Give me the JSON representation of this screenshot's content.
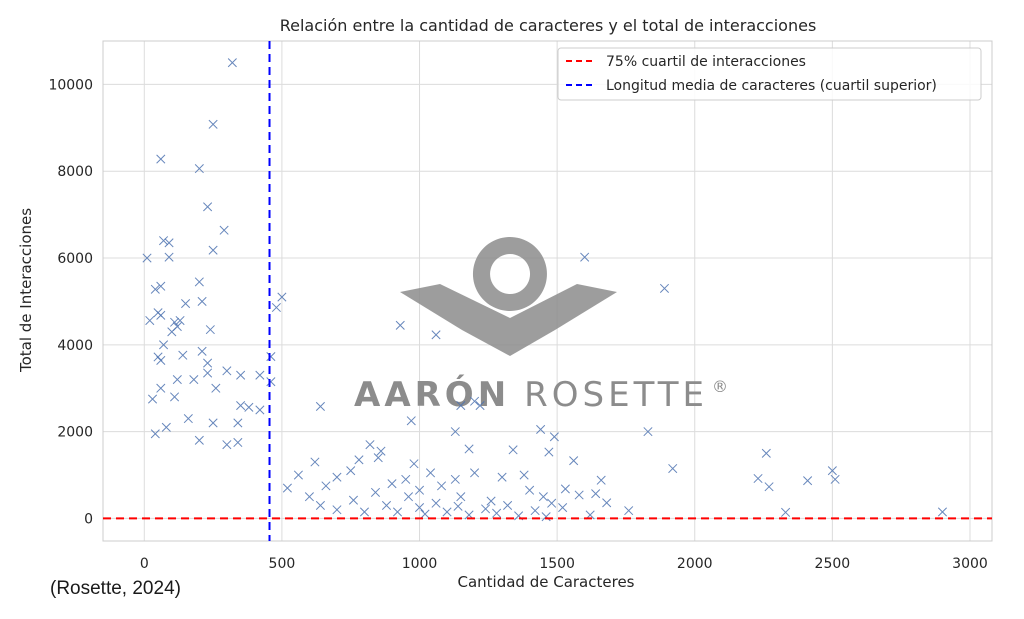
{
  "chart_data": {
    "type": "scatter",
    "title": "Relación entre la cantidad de caracteres y el total de interacciones",
    "xlabel": "Cantidad de Caracteres",
    "ylabel": "Total de Interacciones",
    "xlim": [
      -150,
      3080
    ],
    "ylim": [
      -520,
      11000
    ],
    "xticks": [
      "0",
      "500",
      "1000",
      "1500",
      "2000",
      "2500",
      "3000"
    ],
    "yticks": [
      "0",
      "2000",
      "4000",
      "6000",
      "8000",
      "10000"
    ],
    "grid": true,
    "legend_position": "top-right",
    "series": [
      {
        "marker": "x",
        "color": "#4c72b0",
        "points": [
          [
            320,
            10500
          ],
          [
            250,
            9080
          ],
          [
            60,
            8280
          ],
          [
            200,
            8060
          ],
          [
            230,
            7180
          ],
          [
            290,
            6640
          ],
          [
            70,
            6400
          ],
          [
            90,
            6350
          ],
          [
            250,
            6180
          ],
          [
            10,
            6000
          ],
          [
            90,
            6020
          ],
          [
            1600,
            6020
          ],
          [
            200,
            5450
          ],
          [
            40,
            5280
          ],
          [
            60,
            5350
          ],
          [
            500,
            5100
          ],
          [
            1890,
            5300
          ],
          [
            480,
            4860
          ],
          [
            150,
            4950
          ],
          [
            210,
            5000
          ],
          [
            50,
            4740
          ],
          [
            60,
            4680
          ],
          [
            20,
            4560
          ],
          [
            110,
            4520
          ],
          [
            120,
            4420
          ],
          [
            130,
            4560
          ],
          [
            100,
            4300
          ],
          [
            930,
            4450
          ],
          [
            1060,
            4230
          ],
          [
            240,
            4350
          ],
          [
            70,
            4000
          ],
          [
            210,
            3850
          ],
          [
            140,
            3760
          ],
          [
            50,
            3720
          ],
          [
            60,
            3640
          ],
          [
            230,
            3580
          ],
          [
            460,
            3730
          ],
          [
            230,
            3350
          ],
          [
            300,
            3400
          ],
          [
            350,
            3300
          ],
          [
            420,
            3300
          ],
          [
            120,
            3200
          ],
          [
            180,
            3200
          ],
          [
            460,
            3150
          ],
          [
            260,
            3000
          ],
          [
            60,
            3000
          ],
          [
            110,
            2800
          ],
          [
            30,
            2750
          ],
          [
            350,
            2600
          ],
          [
            380,
            2560
          ],
          [
            420,
            2500
          ],
          [
            640,
            2580
          ],
          [
            1150,
            2600
          ],
          [
            1200,
            2700
          ],
          [
            1220,
            2600
          ],
          [
            970,
            2250
          ],
          [
            160,
            2300
          ],
          [
            250,
            2200
          ],
          [
            80,
            2100
          ],
          [
            340,
            2200
          ],
          [
            1130,
            2000
          ],
          [
            1440,
            2050
          ],
          [
            1490,
            1880
          ],
          [
            1830,
            2000
          ],
          [
            40,
            1950
          ],
          [
            200,
            1800
          ],
          [
            340,
            1750
          ],
          [
            300,
            1700
          ],
          [
            1180,
            1600
          ],
          [
            820,
            1700
          ],
          [
            860,
            1550
          ],
          [
            780,
            1350
          ],
          [
            1340,
            1580
          ],
          [
            1470,
            1530
          ],
          [
            1560,
            1330
          ],
          [
            2260,
            1500
          ],
          [
            1920,
            1150
          ],
          [
            2500,
            1100
          ],
          [
            2510,
            900
          ],
          [
            2230,
            920
          ],
          [
            2410,
            870
          ],
          [
            2270,
            730
          ],
          [
            1660,
            880
          ],
          [
            1640,
            570
          ],
          [
            1680,
            360
          ],
          [
            1580,
            540
          ],
          [
            1760,
            180
          ],
          [
            1620,
            80
          ],
          [
            2330,
            140
          ],
          [
            2900,
            150
          ],
          [
            980,
            1260
          ],
          [
            1040,
            1050
          ],
          [
            1130,
            900
          ],
          [
            1200,
            1050
          ],
          [
            1300,
            950
          ],
          [
            1380,
            1000
          ],
          [
            1400,
            650
          ],
          [
            1450,
            500
          ],
          [
            1480,
            350
          ],
          [
            1520,
            250
          ],
          [
            1530,
            680
          ],
          [
            900,
            800
          ],
          [
            850,
            1400
          ],
          [
            750,
            1100
          ],
          [
            700,
            950
          ],
          [
            660,
            750
          ],
          [
            620,
            1300
          ],
          [
            560,
            1000
          ],
          [
            520,
            700
          ],
          [
            600,
            500
          ],
          [
            640,
            300
          ],
          [
            700,
            200
          ],
          [
            760,
            420
          ],
          [
            800,
            150
          ],
          [
            840,
            600
          ],
          [
            880,
            300
          ],
          [
            920,
            150
          ],
          [
            960,
            500
          ],
          [
            1000,
            250
          ],
          [
            1020,
            100
          ],
          [
            1060,
            350
          ],
          [
            1100,
            150
          ],
          [
            1140,
            280
          ],
          [
            1180,
            80
          ],
          [
            1240,
            220
          ],
          [
            1280,
            120
          ],
          [
            1320,
            300
          ],
          [
            1360,
            60
          ],
          [
            1420,
            180
          ],
          [
            1460,
            40
          ],
          [
            1000,
            650
          ],
          [
            950,
            900
          ],
          [
            1080,
            750
          ],
          [
            1150,
            500
          ],
          [
            1260,
            400
          ]
        ]
      }
    ],
    "reference_lines": [
      {
        "orientation": "horizontal",
        "value": 0,
        "color": "#ff0000",
        "label": "75% cuartil de interacciones"
      },
      {
        "orientation": "vertical",
        "value": 455,
        "color": "#0000ff",
        "label": "Longitud media de caracteres (cuartil superior)"
      }
    ],
    "legend": [
      {
        "label": "75% cuartil de interacciones",
        "color": "#ff0000",
        "style": "dashed"
      },
      {
        "label": "Longitud media de caracteres (cuartil superior)",
        "color": "#0000ff",
        "style": "dashed"
      }
    ]
  },
  "watermark": {
    "text_bold": "AARÓN",
    "text_light": "ROSETTE",
    "mark": "®",
    "color": "#8c8c8c"
  },
  "citation": "(Rosette, 2024)",
  "colors": {
    "grid": "#dcdcdc",
    "spine": "#cccccc",
    "marker": "#4c72b0"
  }
}
